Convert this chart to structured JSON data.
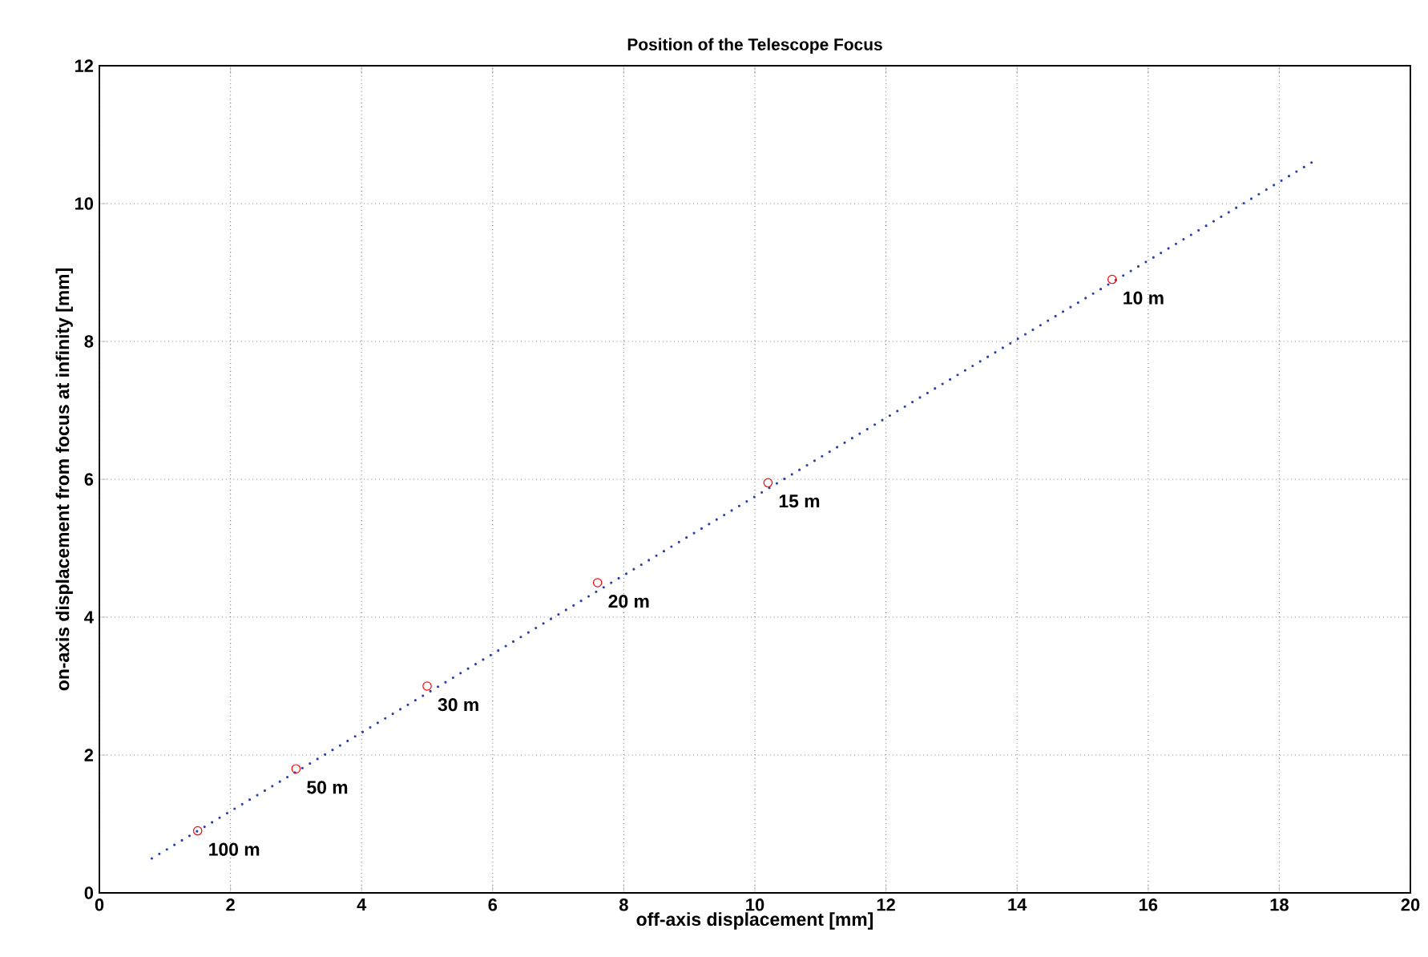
{
  "chart_data": {
    "type": "line",
    "title": "Position of the Telescope Focus",
    "xlabel": "off-axis displacement  [mm]",
    "ylabel": "on-axis displacement from focus at infinity  [mm]",
    "xlim": [
      0,
      20
    ],
    "ylim": [
      0,
      12
    ],
    "xticks": [
      0,
      2,
      4,
      6,
      8,
      10,
      12,
      14,
      16,
      18,
      20
    ],
    "yticks": [
      0,
      2,
      4,
      6,
      8,
      10,
      12
    ],
    "grid": true,
    "series": [
      {
        "color": "#2b3fa8",
        "line_style": "dotted",
        "marker": "none",
        "x": [
          0.8,
          18.5
        ],
        "values": [
          0.5,
          10.6
        ]
      },
      {
        "type": "scatter",
        "color": "#ff0000",
        "marker": "circle",
        "x": [
          1.5,
          3,
          5,
          7.6,
          10.2,
          15.45
        ],
        "values": [
          0.9,
          1.8,
          3,
          4.5,
          5.95,
          8.9
        ]
      }
    ],
    "annotations": [
      {
        "text": "100 m",
        "x": 1.5,
        "y": 0.9
      },
      {
        "text": "50 m",
        "x": 3,
        "y": 1.8
      },
      {
        "text": "30 m",
        "x": 5,
        "y": 3
      },
      {
        "text": "20 m",
        "x": 7.6,
        "y": 4.5
      },
      {
        "text": "15 m",
        "x": 10.2,
        "y": 5.95
      },
      {
        "text": "10 m",
        "x": 15.45,
        "y": 8.9
      }
    ]
  }
}
